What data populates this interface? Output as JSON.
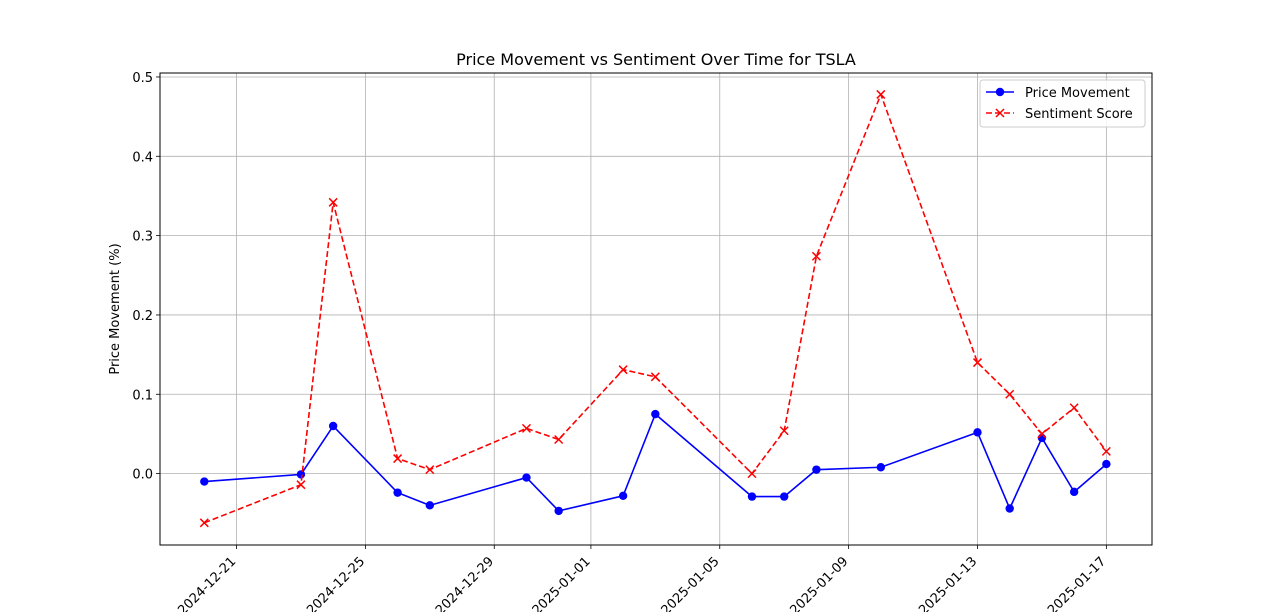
{
  "chart_data": {
    "type": "line",
    "title": "Price Movement vs Sentiment Over Time for TSLA",
    "xlabel": "",
    "ylabel": "Price Movement (%)",
    "ylim": [
      -0.09,
      0.505
    ],
    "xlim": [
      "2024-12-18T15:00",
      "2025-01-18T10:00"
    ],
    "y_ticks": [
      0.0,
      0.1,
      0.2,
      0.3,
      0.4,
      0.5
    ],
    "y_tick_labels": [
      "0.0",
      "0.1",
      "0.2",
      "0.3",
      "0.4",
      "0.5"
    ],
    "x_ticks": [
      "2024-12-21",
      "2024-12-25",
      "2024-12-29",
      "2025-01-01",
      "2025-01-05",
      "2025-01-09",
      "2025-01-13",
      "2025-01-17"
    ],
    "grid": true,
    "legend_position": "top-right",
    "series": [
      {
        "name": "Price Movement",
        "color": "#0000ff",
        "line_style": "solid",
        "marker": "circle",
        "points": [
          {
            "x": "2024-12-20",
            "y": -0.01
          },
          {
            "x": "2024-12-23",
            "y": -0.001
          },
          {
            "x": "2024-12-24",
            "y": 0.06
          },
          {
            "x": "2024-12-26",
            "y": -0.024
          },
          {
            "x": "2024-12-27",
            "y": -0.04
          },
          {
            "x": "2024-12-30",
            "y": -0.005
          },
          {
            "x": "2024-12-31",
            "y": -0.047
          },
          {
            "x": "2025-01-02",
            "y": -0.028
          },
          {
            "x": "2025-01-03",
            "y": 0.075
          },
          {
            "x": "2025-01-06",
            "y": -0.029
          },
          {
            "x": "2025-01-07",
            "y": -0.029
          },
          {
            "x": "2025-01-08",
            "y": 0.005
          },
          {
            "x": "2025-01-10",
            "y": 0.008
          },
          {
            "x": "2025-01-13",
            "y": 0.052
          },
          {
            "x": "2025-01-14",
            "y": -0.044
          },
          {
            "x": "2025-01-15",
            "y": 0.045
          },
          {
            "x": "2025-01-16",
            "y": -0.023
          },
          {
            "x": "2025-01-17",
            "y": 0.012
          }
        ]
      },
      {
        "name": "Sentiment Score",
        "color": "#ff0000",
        "line_style": "dashed",
        "marker": "x",
        "points": [
          {
            "x": "2024-12-20",
            "y": -0.062
          },
          {
            "x": "2024-12-23",
            "y": -0.014
          },
          {
            "x": "2024-12-24",
            "y": 0.342
          },
          {
            "x": "2024-12-26",
            "y": 0.019
          },
          {
            "x": "2024-12-27",
            "y": 0.005
          },
          {
            "x": "2024-12-30",
            "y": 0.057
          },
          {
            "x": "2024-12-31",
            "y": 0.043
          },
          {
            "x": "2025-01-02",
            "y": 0.131
          },
          {
            "x": "2025-01-03",
            "y": 0.122
          },
          {
            "x": "2025-01-06",
            "y": 0.0
          },
          {
            "x": "2025-01-07",
            "y": 0.054
          },
          {
            "x": "2025-01-08",
            "y": 0.274
          },
          {
            "x": "2025-01-10",
            "y": 0.478
          },
          {
            "x": "2025-01-13",
            "y": 0.14
          },
          {
            "x": "2025-01-14",
            "y": 0.1
          },
          {
            "x": "2025-01-15",
            "y": 0.05
          },
          {
            "x": "2025-01-16",
            "y": 0.083
          },
          {
            "x": "2025-01-17",
            "y": 0.028
          }
        ]
      }
    ]
  }
}
